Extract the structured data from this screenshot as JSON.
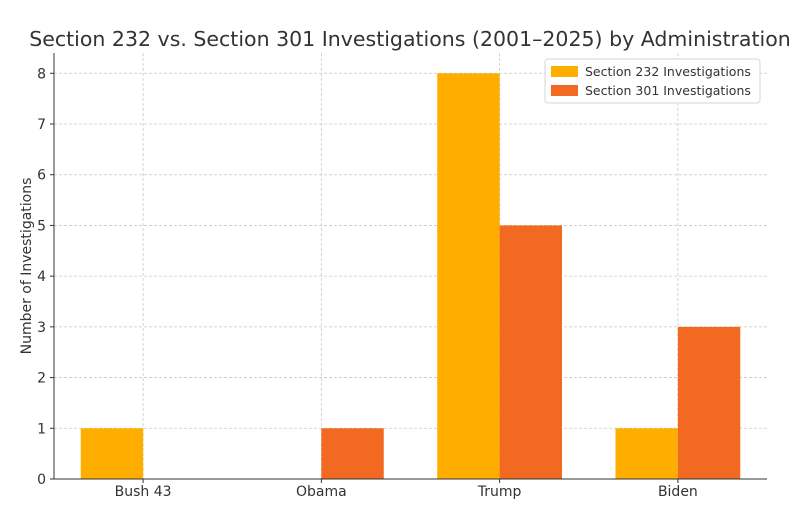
{
  "chart_data": {
    "type": "bar",
    "title": "Section 232 vs. Section 301 Investigations (2001–2025) by Administration",
    "xlabel": "",
    "ylabel": "Number of Investigations",
    "categories": [
      "Bush 43",
      "Obama",
      "Trump",
      "Biden"
    ],
    "series": [
      {
        "name": "Section 232 Investigations",
        "color": "#FFAE00",
        "values": [
          1,
          0,
          8,
          1
        ]
      },
      {
        "name": "Section 301 Investigations",
        "color": "#F26A21",
        "values": [
          0,
          1,
          5,
          3
        ]
      }
    ],
    "ylim": [
      0,
      8.4
    ],
    "yticks": [
      0,
      1,
      2,
      3,
      4,
      5,
      6,
      7,
      8
    ],
    "grid": true,
    "legend_position": "top-right"
  }
}
